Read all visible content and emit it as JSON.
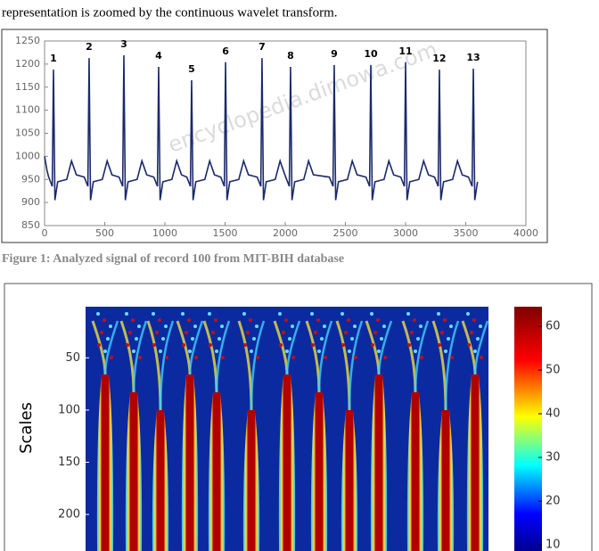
{
  "header": {
    "text": "representation is zoomed by the continuous wavelet transform."
  },
  "figure1": {
    "caption": "Figure 1: Analyzed signal of record 100 from MIT-BIH database",
    "chart_data": {
      "type": "line",
      "x": [
        0,
        20,
        34,
        64,
        74,
        86,
        109,
        184,
        224,
        264,
        330,
        360,
        370,
        382,
        405,
        480,
        520,
        560,
        619,
        649,
        659,
        671,
        694,
        769,
        809,
        849,
        908,
        938,
        948,
        960,
        983,
        1058,
        1098,
        1138,
        1182,
        1212,
        1222,
        1234,
        1257,
        1332,
        1372,
        1412,
        1464,
        1494,
        1504,
        1516,
        1539,
        1614,
        1654,
        1694,
        1767,
        1797,
        1807,
        1819,
        1842,
        1917,
        1957,
        1997,
        2004,
        2034,
        2044,
        2056,
        2079,
        2154,
        2194,
        2234,
        2367,
        2397,
        2407,
        2419,
        2442,
        2517,
        2557,
        2597,
        2671,
        2701,
        2711,
        2723,
        2746,
        2821,
        2861,
        2901,
        2960,
        2990,
        3000,
        3012,
        3035,
        3110,
        3150,
        3190,
        3241,
        3271,
        3281,
        3293,
        3316,
        3391,
        3431,
        3471,
        3523,
        3553,
        3563,
        3575,
        3598
      ],
      "series": [
        {
          "color": "#1b2a6b",
          "values": [
            1000,
            970,
            955,
            935,
            1188,
            905,
            945,
            950,
            990,
            960,
            955,
            935,
            1213,
            905,
            945,
            950,
            990,
            960,
            955,
            935,
            1219,
            905,
            945,
            950,
            990,
            960,
            955,
            935,
            1194,
            905,
            945,
            950,
            990,
            960,
            955,
            935,
            1165,
            905,
            945,
            950,
            990,
            960,
            955,
            935,
            1204,
            905,
            945,
            950,
            990,
            960,
            955,
            935,
            1213,
            905,
            945,
            950,
            990,
            960,
            955,
            935,
            1194,
            905,
            945,
            950,
            990,
            960,
            955,
            935,
            1198,
            905,
            945,
            950,
            990,
            960,
            955,
            935,
            1198,
            905,
            945,
            950,
            990,
            960,
            955,
            935,
            1204,
            905,
            945,
            950,
            990,
            960,
            955,
            935,
            1188,
            905,
            945,
            950,
            990,
            960,
            955,
            935,
            1190,
            905,
            945
          ]
        }
      ],
      "beat_labels": [
        "1",
        "2",
        "3",
        "4",
        "5",
        "6",
        "7",
        "8",
        "9",
        "10",
        "11",
        "12",
        "13"
      ],
      "xlim": [
        0,
        4000
      ],
      "xticks": [
        0,
        500,
        1000,
        1500,
        2000,
        2500,
        3000,
        3500,
        4000
      ],
      "ylim": [
        850,
        1250
      ],
      "yticks": [
        850,
        900,
        950,
        1000,
        1050,
        1100,
        1150,
        1200,
        1250
      ]
    }
  },
  "figure2": {
    "chart_data": {
      "type": "heatmap",
      "ylabel": "Scales",
      "ylim": [
        1,
        235
      ],
      "yticks": [
        50,
        100,
        150,
        200
      ],
      "clim": [
        8.6,
        64.5
      ],
      "cticks": [
        10,
        20,
        30,
        40,
        50,
        60
      ]
    }
  },
  "watermark": "encyclopedia.dimowa.com"
}
